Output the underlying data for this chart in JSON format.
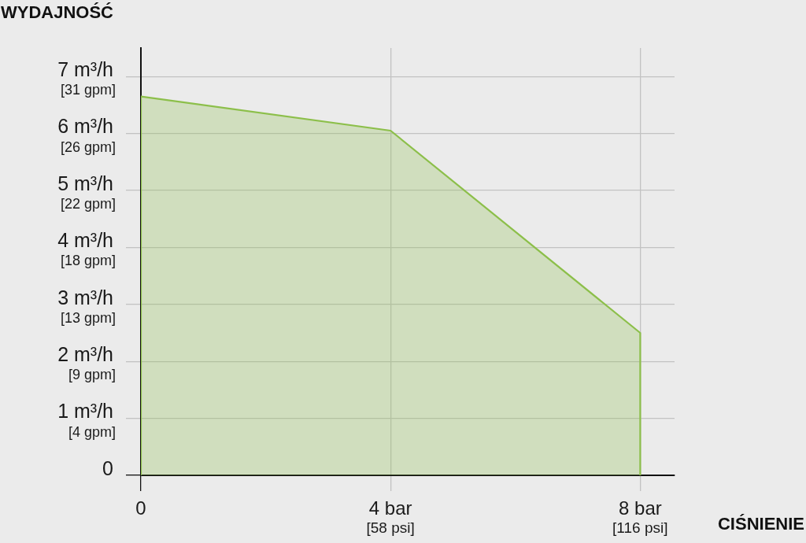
{
  "chart_data": {
    "type": "area",
    "xlabel": "CIŚNIENIE",
    "ylabel": "WYDAJNOŚĆ",
    "x": [
      0,
      0,
      4,
      8,
      8
    ],
    "values": [
      0,
      6.65,
      6.05,
      2.5,
      0
    ],
    "color": "#8cbf4a",
    "xlim": [
      0,
      8.55
    ],
    "xticks": [
      0,
      {
        "value": 4,
        "label": "4 bar"
      },
      {
        "value": 8,
        "label": "8 bar"
      }
    ],
    "x2lim": [
      0,
      124
    ],
    "x2ticks": [
      {
        "value": 58,
        "label": "[58 psi]"
      },
      {
        "value": 116,
        "label": "[116 psi]"
      }
    ],
    "ylim": [
      0,
      7.5
    ],
    "yticks": [
      0,
      {
        "value": 1,
        "label": "1 m³/h"
      },
      {
        "value": 2,
        "label": "2 m³/h"
      },
      {
        "value": 3,
        "label": "3 m³/h"
      },
      {
        "value": 4,
        "label": "4 m³/h"
      },
      {
        "value": 5,
        "label": "5 m³/h"
      },
      {
        "value": 6,
        "label": "6 m³/h"
      },
      {
        "value": 7,
        "label": "7 m³/h"
      }
    ],
    "y2lim": [
      0,
      33
    ],
    "y2ticks": [
      {
        "value": 4.4,
        "label": "[4 gpm]"
      },
      {
        "value": 8.8,
        "label": "[9 gpm]"
      },
      {
        "value": 13.2,
        "label": "[13 gpm]"
      },
      {
        "value": 17.6,
        "label": "[18 gpm]"
      },
      {
        "value": 22,
        "label": "[22 gpm]"
      },
      {
        "value": 26.4,
        "label": "[26 gpm]"
      },
      {
        "value": 30.8,
        "label": "[31 gpm]"
      }
    ],
    "grid": true,
    "marker": "none",
    "line_style": "solid"
  }
}
